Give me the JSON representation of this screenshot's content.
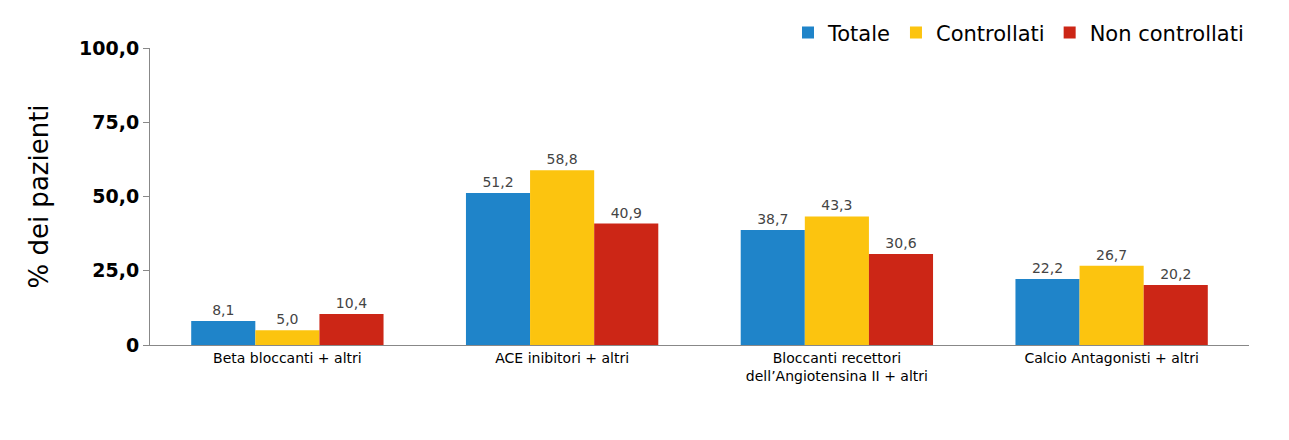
{
  "chart_data": {
    "type": "bar",
    "y_label": "% dei pazienti",
    "categories": [
      "Beta bloccanti + altri",
      "ACE inibitori + altri",
      "Bloccanti recettori dell’Angiotensina II + altri",
      "Calcio Antagonisti + altri"
    ],
    "series": [
      {
        "name": "Totale",
        "color": "#1f84c9",
        "values": [
          8.1,
          51.2,
          38.7,
          22.2
        ],
        "value_labels": [
          "8,1",
          "51,2",
          "38,7",
          "22,2"
        ]
      },
      {
        "name": "Controllati",
        "color": "#fcc40f",
        "values": [
          5.0,
          58.8,
          43.3,
          26.7
        ],
        "value_labels": [
          "5,0",
          "58,8",
          "43,3",
          "26,7"
        ]
      },
      {
        "name": "Non controllati",
        "color": "#cc2616",
        "values": [
          10.4,
          40.9,
          30.6,
          20.2
        ],
        "value_labels": [
          "10,4",
          "40,9",
          "30,6",
          "20,2"
        ]
      }
    ],
    "ylim": [
      0,
      100
    ],
    "yticks": [
      0,
      {
        "value": 25,
        "label": "25,0"
      },
      {
        "value": 50,
        "label": "50,0"
      },
      {
        "value": 75,
        "label": "75,0"
      },
      {
        "value": 100,
        "label": "100,0"
      }
    ],
    "grid": false,
    "legend": "top right",
    "data_labels": true
  }
}
